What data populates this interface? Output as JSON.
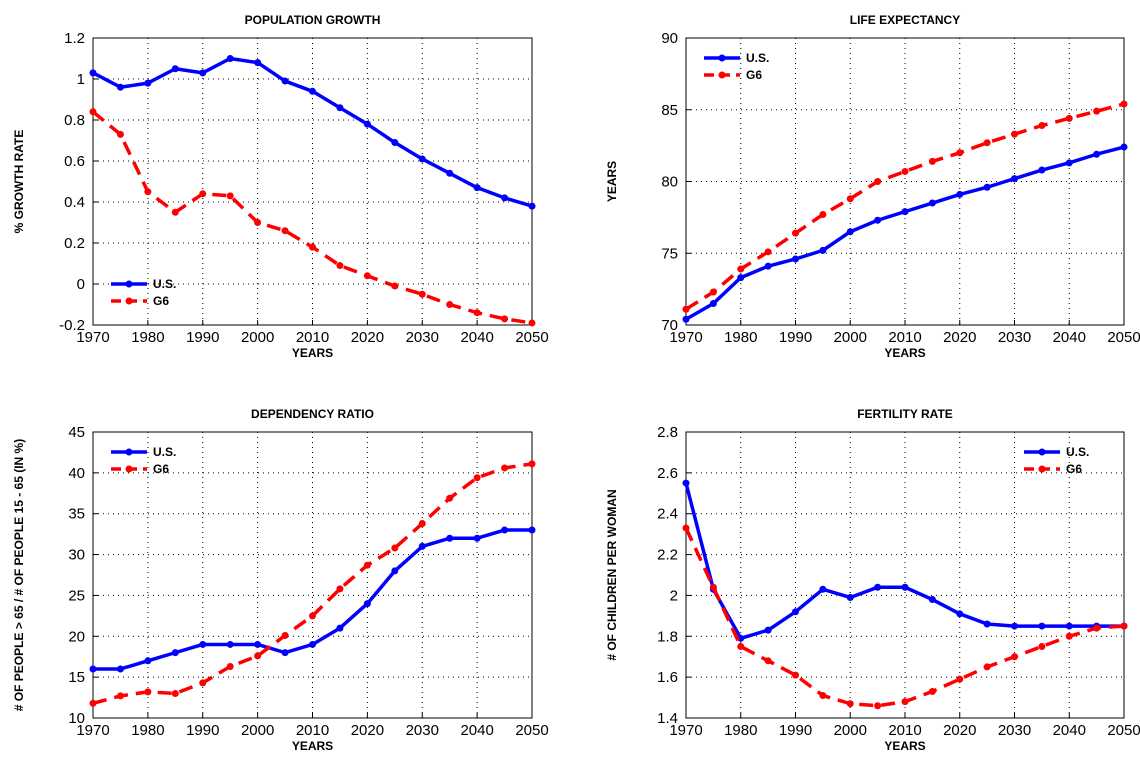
{
  "chart_data": [
    {
      "type": "line",
      "title": "POPULATION GROWTH",
      "x_label": "YEARS",
      "y_label": "% GROWTH RATE",
      "x": [
        1970,
        1975,
        1980,
        1985,
        1990,
        1995,
        2000,
        2005,
        2010,
        2015,
        2020,
        2025,
        2030,
        2035,
        2040,
        2045,
        2050
      ],
      "xlim": [
        1970,
        2050
      ],
      "xticks": [
        1970,
        1980,
        1990,
        2000,
        2010,
        2020,
        2030,
        2040,
        2050
      ],
      "ylim": [
        -0.2,
        1.2
      ],
      "yticks": [
        -0.2,
        0,
        0.2,
        0.4,
        0.6,
        0.8,
        1,
        1.2
      ],
      "grid": true,
      "legend": "lower-left",
      "series": [
        {
          "name": "U.S.",
          "color": "#0000ff",
          "style": "solid",
          "values": [
            1.03,
            0.96,
            0.98,
            1.05,
            1.03,
            1.1,
            1.08,
            0.99,
            0.94,
            0.86,
            0.78,
            0.69,
            0.61,
            0.54,
            0.47,
            0.42,
            0.38
          ]
        },
        {
          "name": "G6",
          "color": "#ff0000",
          "style": "dashed",
          "values": [
            0.84,
            0.73,
            0.45,
            0.35,
            0.44,
            0.43,
            0.3,
            0.26,
            0.18,
            0.09,
            0.04,
            -0.01,
            -0.05,
            -0.1,
            -0.14,
            -0.17,
            -0.19
          ]
        }
      ]
    },
    {
      "type": "line",
      "title": "LIFE EXPECTANCY",
      "x_label": "YEARS",
      "y_label": "YEARS",
      "x": [
        1970,
        1975,
        1980,
        1985,
        1990,
        1995,
        2000,
        2005,
        2010,
        2015,
        2020,
        2025,
        2030,
        2035,
        2040,
        2045,
        2050
      ],
      "xlim": [
        1970,
        2050
      ],
      "xticks": [
        1970,
        1980,
        1990,
        2000,
        2010,
        2020,
        2030,
        2040,
        2050
      ],
      "ylim": [
        70,
        90
      ],
      "yticks": [
        70,
        75,
        80,
        85,
        90
      ],
      "grid": true,
      "legend": "upper-left",
      "series": [
        {
          "name": "U.S.",
          "color": "#0000ff",
          "style": "solid",
          "values": [
            70.4,
            71.5,
            73.3,
            74.1,
            74.6,
            75.2,
            76.5,
            77.3,
            77.9,
            78.5,
            79.1,
            79.6,
            80.2,
            80.8,
            81.3,
            81.9,
            82.4
          ]
        },
        {
          "name": "G6",
          "color": "#ff0000",
          "style": "dashed",
          "values": [
            71.1,
            72.3,
            73.9,
            75.1,
            76.4,
            77.7,
            78.8,
            80.0,
            80.7,
            81.4,
            82.0,
            82.7,
            83.3,
            83.9,
            84.4,
            84.9,
            85.4
          ]
        }
      ]
    },
    {
      "type": "line",
      "title": "DEPENDENCY RATIO",
      "x_label": "YEARS",
      "y_label": "# OF PEOPLE > 65 / # OF PEOPLE 15 - 65 (IN %)",
      "x": [
        1970,
        1975,
        1980,
        1985,
        1990,
        1995,
        2000,
        2005,
        2010,
        2015,
        2020,
        2025,
        2030,
        2035,
        2040,
        2045,
        2050
      ],
      "xlim": [
        1970,
        2050
      ],
      "xticks": [
        1970,
        1980,
        1990,
        2000,
        2010,
        2020,
        2030,
        2040,
        2050
      ],
      "ylim": [
        10,
        45
      ],
      "yticks": [
        10,
        15,
        20,
        25,
        30,
        35,
        40,
        45
      ],
      "grid": true,
      "legend": "upper-left",
      "series": [
        {
          "name": "U.S.",
          "color": "#0000ff",
          "style": "solid",
          "values": [
            16,
            16,
            17,
            18,
            19,
            19,
            19,
            18,
            19,
            21,
            24,
            28,
            31,
            32,
            32,
            33,
            33
          ]
        },
        {
          "name": "G6",
          "color": "#ff0000",
          "style": "dashed",
          "values": [
            11.8,
            12.7,
            13.2,
            13.0,
            14.3,
            16.3,
            17.6,
            20.1,
            22.5,
            25.8,
            28.7,
            30.8,
            33.8,
            36.9,
            39.4,
            40.6,
            41.1
          ]
        }
      ]
    },
    {
      "type": "line",
      "title": "FERTILITY RATE",
      "x_label": "YEARS",
      "y_label": "# OF CHILDREN PER WOMAN",
      "x": [
        1970,
        1975,
        1980,
        1985,
        1990,
        1995,
        2000,
        2005,
        2010,
        2015,
        2020,
        2025,
        2030,
        2035,
        2040,
        2045,
        2050
      ],
      "xlim": [
        1970,
        2050
      ],
      "xticks": [
        1970,
        1980,
        1990,
        2000,
        2010,
        2020,
        2030,
        2040,
        2050
      ],
      "ylim": [
        1.4,
        2.8
      ],
      "yticks": [
        1.4,
        1.6,
        1.8,
        2,
        2.2,
        2.4,
        2.6,
        2.8
      ],
      "grid": true,
      "legend": "upper-right",
      "series": [
        {
          "name": "U.S.",
          "color": "#0000ff",
          "style": "solid",
          "values": [
            2.55,
            2.03,
            1.79,
            1.83,
            1.92,
            2.03,
            1.99,
            2.04,
            2.04,
            1.98,
            1.91,
            1.86,
            1.85,
            1.85,
            1.85,
            1.85,
            1.85
          ]
        },
        {
          "name": "G6",
          "color": "#ff0000",
          "style": "dashed",
          "values": [
            2.33,
            2.04,
            1.75,
            1.68,
            1.61,
            1.51,
            1.47,
            1.46,
            1.48,
            1.53,
            1.59,
            1.65,
            1.7,
            1.75,
            1.8,
            1.84,
            1.85
          ]
        }
      ]
    }
  ]
}
